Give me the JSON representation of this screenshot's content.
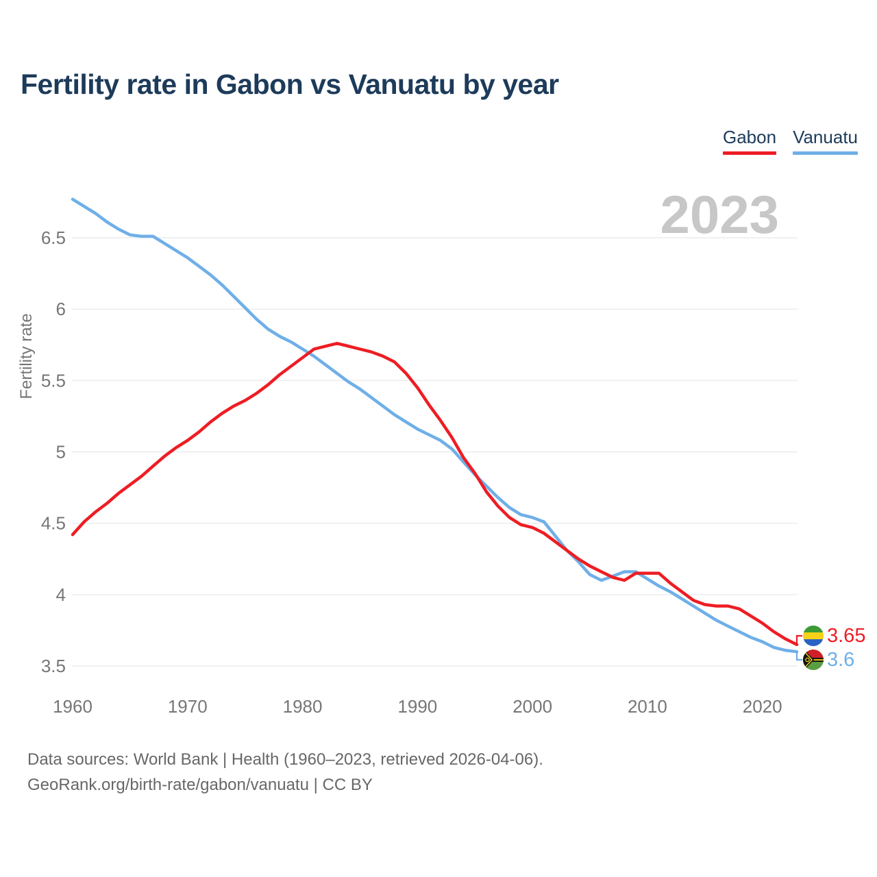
{
  "title": "Fertility rate in Gabon vs Vanuatu by year",
  "watermark": "2023",
  "legend": [
    {
      "label": "Gabon",
      "color": "#ee1d24"
    },
    {
      "label": "Vanuatu",
      "color": "#6fafe8"
    }
  ],
  "end_labels": [
    {
      "series": "Gabon",
      "value": "3.65",
      "flag": "gabon-flag",
      "color": "#ee1d24"
    },
    {
      "series": "Vanuatu",
      "value": "3.6",
      "flag": "vanuatu-flag",
      "color": "#6fafe8"
    }
  ],
  "footer": {
    "line1": "Data sources: World Bank | Health (1960–2023, retrieved 2026-04-06).",
    "line2": "GeoRank.org/birth-rate/gabon/vanuatu | CC BY"
  },
  "colors": {
    "title": "#1d3b5a",
    "axis_text": "#767676",
    "gridline": "#ebebeb",
    "watermark": "#c7c7c7",
    "gabon_red": "#ee1d24",
    "vanuatu_blue": "#6fafe8"
  },
  "chart_data": {
    "type": "line",
    "title": "Fertility rate in Gabon vs Vanuatu by year",
    "xlabel": "",
    "ylabel": "Fertility rate",
    "grid": true,
    "legend_position": "top-right",
    "xlim": [
      1960,
      2023
    ],
    "ylim": [
      3.4,
      6.85
    ],
    "xticks": [
      1960,
      1970,
      1980,
      1990,
      2000,
      2010,
      2020
    ],
    "yticks": [
      3.5,
      4,
      4.5,
      5,
      5.5,
      6,
      6.5
    ],
    "x": [
      1960,
      1961,
      1962,
      1963,
      1964,
      1965,
      1966,
      1967,
      1968,
      1969,
      1970,
      1971,
      1972,
      1973,
      1974,
      1975,
      1976,
      1977,
      1978,
      1979,
      1980,
      1981,
      1982,
      1983,
      1984,
      1985,
      1986,
      1987,
      1988,
      1989,
      1990,
      1991,
      1992,
      1993,
      1994,
      1995,
      1996,
      1997,
      1998,
      1999,
      2000,
      2001,
      2002,
      2003,
      2004,
      2005,
      2006,
      2007,
      2008,
      2009,
      2010,
      2011,
      2012,
      2013,
      2014,
      2015,
      2016,
      2017,
      2018,
      2019,
      2020,
      2021,
      2022,
      2023
    ],
    "series": [
      {
        "name": "Gabon",
        "color": "#ee1d24",
        "values": [
          4.42,
          4.51,
          4.58,
          4.64,
          4.71,
          4.77,
          4.83,
          4.9,
          4.97,
          5.03,
          5.08,
          5.14,
          5.21,
          5.27,
          5.32,
          5.36,
          5.41,
          5.47,
          5.54,
          5.6,
          5.66,
          5.72,
          5.74,
          5.76,
          5.74,
          5.72,
          5.7,
          5.67,
          5.63,
          5.55,
          5.45,
          5.33,
          5.22,
          5.1,
          4.96,
          4.85,
          4.72,
          4.62,
          4.54,
          4.49,
          4.47,
          4.43,
          4.37,
          4.31,
          4.25,
          4.2,
          4.16,
          4.12,
          4.1,
          4.15,
          4.15,
          4.15,
          4.08,
          4.02,
          3.96,
          3.93,
          3.92,
          3.92,
          3.9,
          3.85,
          3.8,
          3.74,
          3.69,
          3.65
        ]
      },
      {
        "name": "Vanuatu",
        "color": "#6fafe8",
        "values": [
          6.77,
          6.72,
          6.67,
          6.61,
          6.56,
          6.52,
          6.51,
          6.51,
          6.46,
          6.41,
          6.36,
          6.3,
          6.24,
          6.17,
          6.09,
          6.01,
          5.93,
          5.86,
          5.81,
          5.77,
          5.72,
          5.67,
          5.61,
          5.55,
          5.49,
          5.44,
          5.38,
          5.32,
          5.26,
          5.21,
          5.16,
          5.12,
          5.08,
          5.02,
          4.93,
          4.84,
          4.76,
          4.68,
          4.61,
          4.56,
          4.54,
          4.51,
          4.41,
          4.31,
          4.23,
          4.14,
          4.1,
          4.13,
          4.16,
          4.16,
          4.11,
          4.06,
          4.02,
          3.97,
          3.92,
          3.87,
          3.82,
          3.78,
          3.74,
          3.7,
          3.67,
          3.63,
          3.61,
          3.6
        ]
      }
    ]
  }
}
